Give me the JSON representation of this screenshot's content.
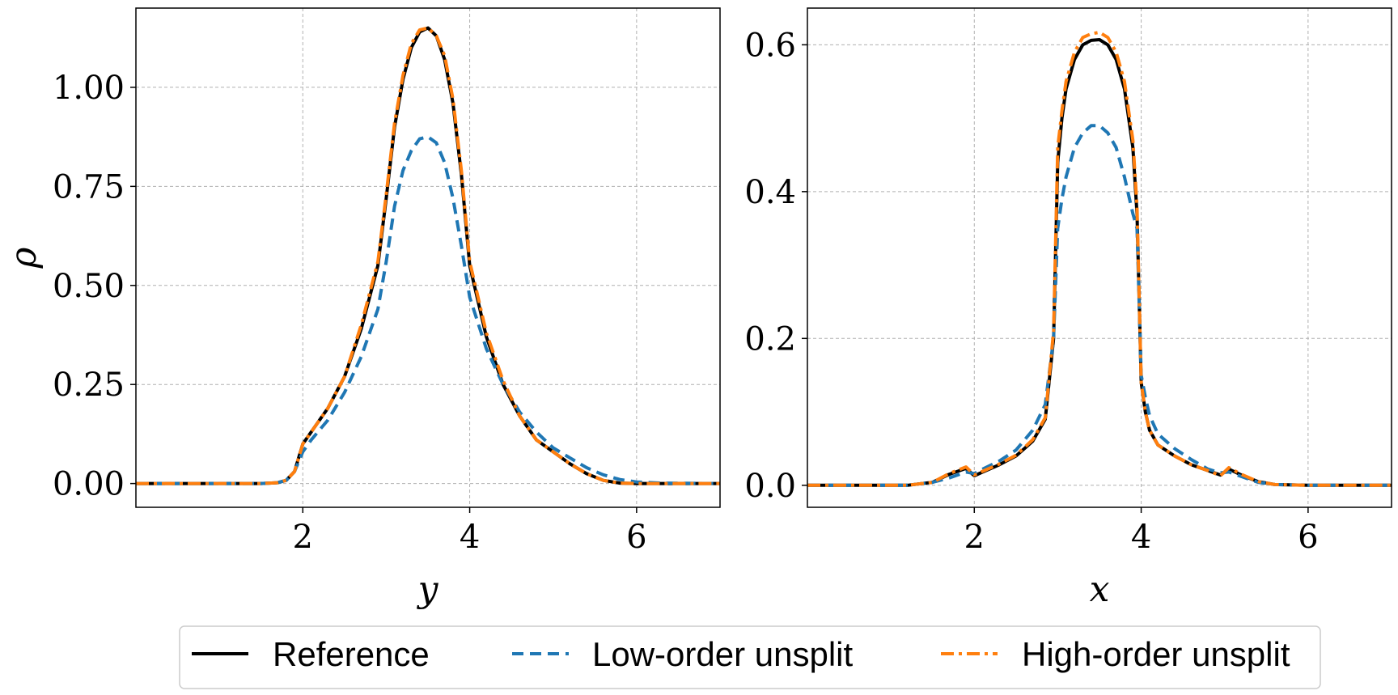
{
  "chart_data": [
    {
      "type": "line",
      "xlabel": "y",
      "ylabel": "ρ",
      "xlim": [
        0.0,
        7.0
      ],
      "ylim": [
        -0.06,
        1.2
      ],
      "xticks": [
        2,
        4,
        6
      ],
      "xtick_labels": [
        "2",
        "4",
        "6"
      ],
      "yticks": [
        0.0,
        0.25,
        0.5,
        0.75,
        1.0
      ],
      "ytick_labels": [
        "0.00",
        "0.25",
        "0.50",
        "0.75",
        "1.00"
      ],
      "grid": true,
      "series": [
        {
          "name": "Reference",
          "color": "#000000",
          "style": "solid",
          "x": [
            0.0,
            1.5,
            1.7,
            1.8,
            1.9,
            2.0,
            2.1,
            2.3,
            2.5,
            2.7,
            2.9,
            3.0,
            3.1,
            3.2,
            3.3,
            3.4,
            3.5,
            3.6,
            3.7,
            3.8,
            3.9,
            4.0,
            4.2,
            4.4,
            4.6,
            4.8,
            5.0,
            5.2,
            5.4,
            5.6,
            5.8,
            6.0,
            7.0
          ],
          "y": [
            0.0,
            0.0,
            0.002,
            0.008,
            0.03,
            0.1,
            0.13,
            0.19,
            0.27,
            0.39,
            0.55,
            0.72,
            0.9,
            1.02,
            1.1,
            1.14,
            1.15,
            1.13,
            1.07,
            0.96,
            0.78,
            0.55,
            0.37,
            0.25,
            0.17,
            0.11,
            0.08,
            0.05,
            0.025,
            0.008,
            0.001,
            0.0,
            0.0
          ]
        },
        {
          "name": "Low-order unsplit",
          "color": "#1f77b4",
          "style": "dashed",
          "x": [
            0.0,
            1.5,
            1.7,
            1.8,
            1.9,
            2.0,
            2.1,
            2.3,
            2.5,
            2.7,
            2.9,
            3.0,
            3.1,
            3.2,
            3.3,
            3.4,
            3.5,
            3.6,
            3.7,
            3.8,
            3.9,
            4.0,
            4.2,
            4.4,
            4.6,
            4.8,
            5.0,
            5.2,
            5.4,
            5.6,
            5.8,
            6.0,
            6.3,
            7.0
          ],
          "y": [
            0.0,
            0.0,
            0.002,
            0.008,
            0.03,
            0.08,
            0.11,
            0.16,
            0.23,
            0.32,
            0.44,
            0.56,
            0.7,
            0.79,
            0.84,
            0.87,
            0.875,
            0.86,
            0.81,
            0.72,
            0.6,
            0.47,
            0.34,
            0.25,
            0.18,
            0.13,
            0.09,
            0.065,
            0.04,
            0.022,
            0.01,
            0.004,
            0.001,
            0.0
          ]
        },
        {
          "name": "High-order unsplit",
          "color": "#ff7f0e",
          "style": "dashdot",
          "x": [
            0.0,
            1.5,
            1.7,
            1.8,
            1.9,
            2.0,
            2.1,
            2.3,
            2.5,
            2.7,
            2.9,
            3.0,
            3.1,
            3.2,
            3.3,
            3.4,
            3.5,
            3.6,
            3.7,
            3.8,
            3.9,
            4.0,
            4.2,
            4.4,
            4.6,
            4.8,
            5.0,
            5.2,
            5.4,
            5.6,
            5.8,
            6.0,
            7.0
          ],
          "y": [
            0.0,
            0.0,
            0.002,
            0.008,
            0.03,
            0.1,
            0.13,
            0.19,
            0.27,
            0.4,
            0.56,
            0.73,
            0.91,
            1.03,
            1.11,
            1.145,
            1.15,
            1.13,
            1.08,
            0.97,
            0.79,
            0.56,
            0.38,
            0.26,
            0.17,
            0.11,
            0.08,
            0.05,
            0.025,
            0.008,
            0.001,
            0.0,
            0.0
          ]
        }
      ]
    },
    {
      "type": "line",
      "xlabel": "x",
      "ylabel": "",
      "xlim": [
        0.0,
        7.0
      ],
      "ylim": [
        -0.03,
        0.65
      ],
      "xticks": [
        2,
        4,
        6
      ],
      "xtick_labels": [
        "2",
        "4",
        "6"
      ],
      "yticks": [
        0.0,
        0.2,
        0.4,
        0.6
      ],
      "ytick_labels": [
        "0.0",
        "0.2",
        "0.4",
        "0.6"
      ],
      "grid": true,
      "series": [
        {
          "name": "Reference",
          "color": "#000000",
          "style": "solid",
          "x": [
            0.0,
            1.2,
            1.5,
            1.7,
            1.9,
            2.0,
            2.1,
            2.3,
            2.5,
            2.7,
            2.85,
            2.95,
            3.0,
            3.05,
            3.1,
            3.2,
            3.3,
            3.4,
            3.5,
            3.6,
            3.7,
            3.8,
            3.9,
            3.95,
            4.0,
            4.05,
            4.1,
            4.2,
            4.4,
            4.6,
            4.8,
            4.95,
            5.05,
            5.2,
            5.4,
            5.6,
            6.0,
            7.0
          ],
          "y": [
            0.0,
            0.0,
            0.004,
            0.015,
            0.023,
            0.013,
            0.018,
            0.028,
            0.04,
            0.06,
            0.09,
            0.2,
            0.44,
            0.5,
            0.54,
            0.58,
            0.6,
            0.606,
            0.607,
            0.6,
            0.58,
            0.54,
            0.46,
            0.37,
            0.14,
            0.1,
            0.075,
            0.055,
            0.04,
            0.028,
            0.02,
            0.014,
            0.022,
            0.014,
            0.005,
            0.001,
            0.0,
            0.0
          ]
        },
        {
          "name": "Low-order unsplit",
          "color": "#1f77b4",
          "style": "dashed",
          "x": [
            0.0,
            1.2,
            1.5,
            1.7,
            1.9,
            2.0,
            2.1,
            2.3,
            2.5,
            2.7,
            2.85,
            2.95,
            3.0,
            3.05,
            3.1,
            3.2,
            3.3,
            3.4,
            3.5,
            3.6,
            3.7,
            3.8,
            3.9,
            3.95,
            4.0,
            4.05,
            4.1,
            4.2,
            4.4,
            4.6,
            4.8,
            4.95,
            5.05,
            5.2,
            5.4,
            5.6,
            6.0,
            7.0
          ],
          "y": [
            0.0,
            0.0,
            0.004,
            0.01,
            0.018,
            0.016,
            0.022,
            0.033,
            0.048,
            0.075,
            0.11,
            0.2,
            0.35,
            0.39,
            0.42,
            0.46,
            0.48,
            0.49,
            0.49,
            0.48,
            0.46,
            0.42,
            0.37,
            0.35,
            0.15,
            0.12,
            0.095,
            0.07,
            0.05,
            0.035,
            0.022,
            0.017,
            0.018,
            0.012,
            0.004,
            0.001,
            0.0,
            0.0
          ]
        },
        {
          "name": "High-order unsplit",
          "color": "#ff7f0e",
          "style": "dashdot",
          "x": [
            0.0,
            1.2,
            1.5,
            1.7,
            1.9,
            2.0,
            2.1,
            2.3,
            2.5,
            2.7,
            2.85,
            2.95,
            3.0,
            3.05,
            3.1,
            3.2,
            3.3,
            3.4,
            3.5,
            3.6,
            3.7,
            3.8,
            3.9,
            3.95,
            4.0,
            4.05,
            4.1,
            4.2,
            4.4,
            4.6,
            4.8,
            4.95,
            5.05,
            5.2,
            5.4,
            5.6,
            6.0,
            7.0
          ],
          "y": [
            0.0,
            0.0,
            0.004,
            0.016,
            0.025,
            0.014,
            0.019,
            0.029,
            0.041,
            0.062,
            0.092,
            0.21,
            0.46,
            0.51,
            0.55,
            0.59,
            0.61,
            0.615,
            0.617,
            0.61,
            0.59,
            0.55,
            0.47,
            0.38,
            0.14,
            0.1,
            0.075,
            0.055,
            0.04,
            0.028,
            0.02,
            0.013,
            0.024,
            0.015,
            0.005,
            0.001,
            0.0,
            0.0
          ]
        }
      ]
    }
  ],
  "legend": {
    "placement": "bottom",
    "entries": [
      {
        "label": "Reference",
        "color": "#000000",
        "style": "solid"
      },
      {
        "label": "Low-order unsplit",
        "color": "#1f77b4",
        "style": "dashed"
      },
      {
        "label": "High-order unsplit",
        "color": "#ff7f0e",
        "style": "dashdot"
      }
    ]
  }
}
